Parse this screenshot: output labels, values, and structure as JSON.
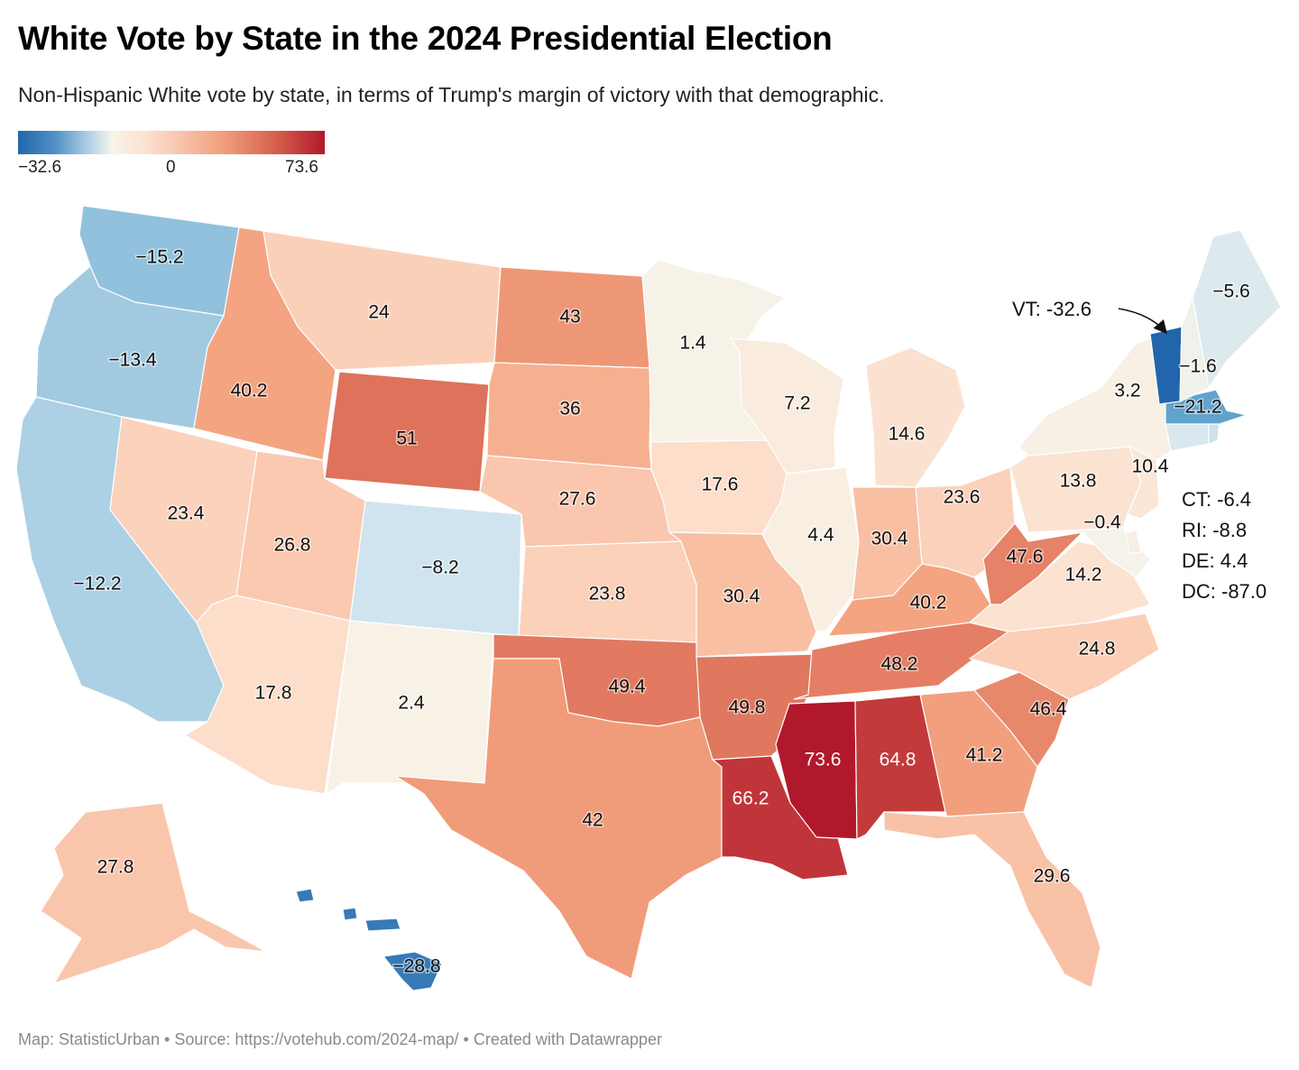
{
  "title": "White Vote by State in the 2024 Presidential Election",
  "subtitle": "Non-Hispanic White vote by state, in terms of Trump's margin of victory with that demographic.",
  "legend": {
    "min": "−32.6",
    "mid": "0",
    "max": "73.6"
  },
  "footer": "Map: StatisticUrban • Source: https://votehub.com/2024-map/ • Created with Datawrapper",
  "callout": "VT: -32.6",
  "side_notes": [
    "CT: -6.4",
    "RI: -8.8",
    "DE: 4.4",
    "DC: -87.0"
  ],
  "colors": {
    "blue": "#2166ac",
    "neutral": "#f7f4e9",
    "red": "#b2182b"
  },
  "states": [
    {
      "code": "WA",
      "value": -15.2,
      "label": "−15.2"
    },
    {
      "code": "OR",
      "value": -13.4,
      "label": "−13.4"
    },
    {
      "code": "CA",
      "value": -12.2,
      "label": "−12.2"
    },
    {
      "code": "NV",
      "value": 23.4,
      "label": "23.4"
    },
    {
      "code": "ID",
      "value": 40.2,
      "label": "40.2"
    },
    {
      "code": "MT",
      "value": 24,
      "label": "24"
    },
    {
      "code": "WY",
      "value": 51,
      "label": "51"
    },
    {
      "code": "UT",
      "value": 26.8,
      "label": "26.8"
    },
    {
      "code": "AZ",
      "value": 17.8,
      "label": "17.8"
    },
    {
      "code": "CO",
      "value": -8.2,
      "label": "−8.2"
    },
    {
      "code": "NM",
      "value": 2.4,
      "label": "2.4"
    },
    {
      "code": "ND",
      "value": 43,
      "label": "43"
    },
    {
      "code": "SD",
      "value": 36,
      "label": "36"
    },
    {
      "code": "NE",
      "value": 27.6,
      "label": "27.6"
    },
    {
      "code": "KS",
      "value": 23.8,
      "label": "23.8"
    },
    {
      "code": "OK",
      "value": 49.4,
      "label": "49.4"
    },
    {
      "code": "TX",
      "value": 42,
      "label": "42"
    },
    {
      "code": "MN",
      "value": 1.4,
      "label": "1.4"
    },
    {
      "code": "IA",
      "value": 17.6,
      "label": "17.6"
    },
    {
      "code": "MO",
      "value": 30.4,
      "label": "30.4"
    },
    {
      "code": "AR",
      "value": 49.8,
      "label": "49.8"
    },
    {
      "code": "LA",
      "value": 66.2,
      "label": "66.2"
    },
    {
      "code": "WI",
      "value": 7.2,
      "label": "7.2"
    },
    {
      "code": "IL",
      "value": 4.4,
      "label": "4.4"
    },
    {
      "code": "MI",
      "value": 14.6,
      "label": "14.6"
    },
    {
      "code": "IN",
      "value": 30.4,
      "label": "30.4"
    },
    {
      "code": "OH",
      "value": 23.6,
      "label": "23.6"
    },
    {
      "code": "KY",
      "value": 40.2,
      "label": "40.2"
    },
    {
      "code": "TN",
      "value": 48.2,
      "label": "48.2"
    },
    {
      "code": "MS",
      "value": 73.6,
      "label": "73.6"
    },
    {
      "code": "AL",
      "value": 64.8,
      "label": "64.8"
    },
    {
      "code": "GA",
      "value": 41.2,
      "label": "41.2"
    },
    {
      "code": "FL",
      "value": 29.6,
      "label": "29.6"
    },
    {
      "code": "SC",
      "value": 46.4,
      "label": "46.4"
    },
    {
      "code": "NC",
      "value": 24.8,
      "label": "24.8"
    },
    {
      "code": "VA",
      "value": 14.2,
      "label": "14.2"
    },
    {
      "code": "WV",
      "value": 47.6,
      "label": "47.6"
    },
    {
      "code": "MD",
      "value": -0.4,
      "label": "−0.4"
    },
    {
      "code": "PA",
      "value": 13.8,
      "label": "13.8"
    },
    {
      "code": "NJ",
      "value": 10.4,
      "label": "10.4"
    },
    {
      "code": "NY",
      "value": 3.2,
      "label": "3.2"
    },
    {
      "code": "CT",
      "value": -6.4,
      "label": ""
    },
    {
      "code": "RI",
      "value": -8.8,
      "label": ""
    },
    {
      "code": "MA",
      "value": -21.2,
      "label": "−21.2"
    },
    {
      "code": "VT",
      "value": -32.6,
      "label": ""
    },
    {
      "code": "NH",
      "value": -1.6,
      "label": "−1.6"
    },
    {
      "code": "ME",
      "value": -5.6,
      "label": "−5.6"
    },
    {
      "code": "DE",
      "value": 4.4,
      "label": ""
    },
    {
      "code": "AK",
      "value": 27.8,
      "label": "27.8"
    },
    {
      "code": "HI",
      "value": -28.8,
      "label": "−28.8"
    }
  ]
}
